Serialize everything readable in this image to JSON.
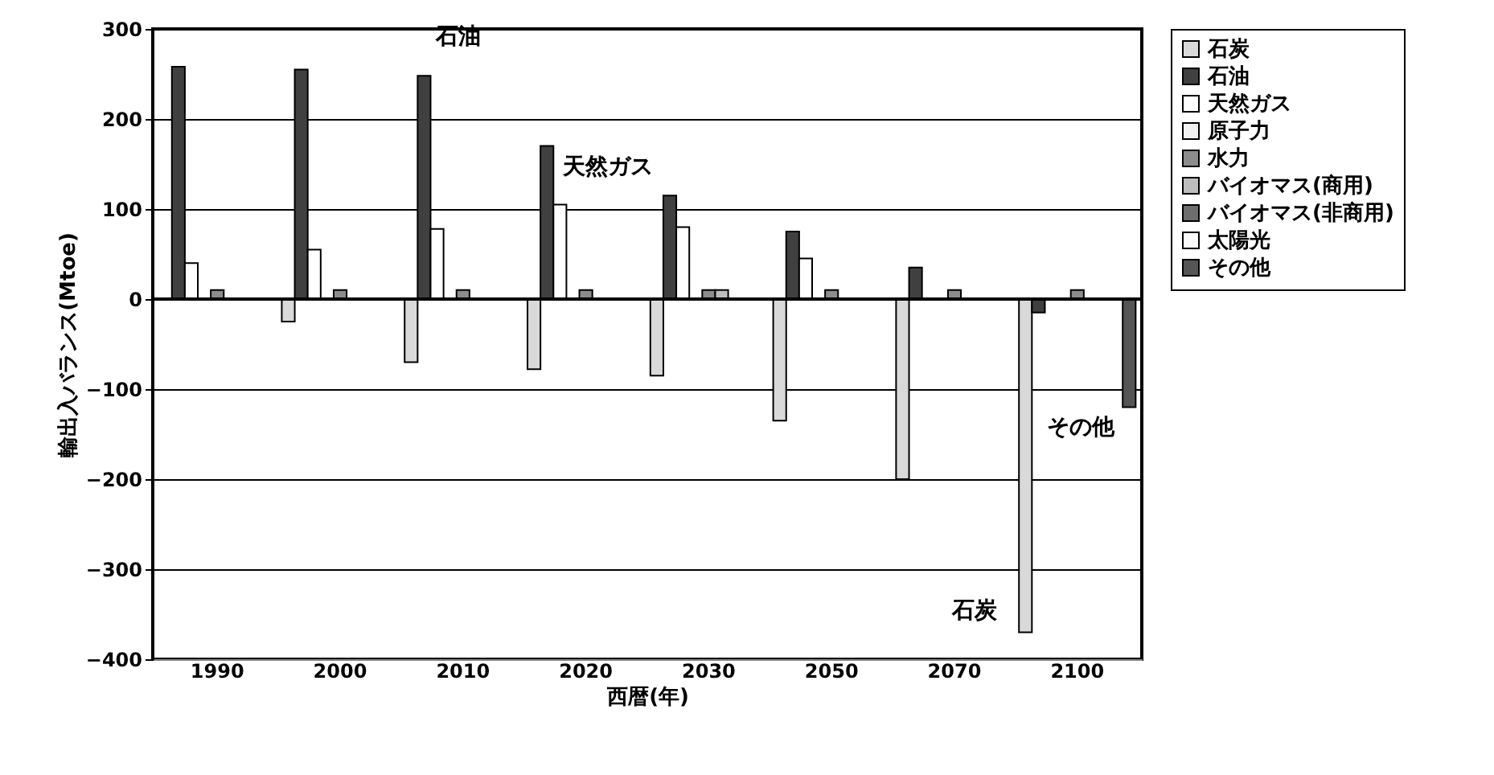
{
  "chart_data": {
    "type": "bar",
    "xlabel": "西暦(年)",
    "ylabel": "輸出入バランス(Mtoe)",
    "categories": [
      "1990",
      "2000",
      "2010",
      "2020",
      "2030",
      "2050",
      "2070",
      "2100"
    ],
    "series": [
      {
        "name": "石炭",
        "color": "#d9d9d9",
        "values": [
          null,
          -25,
          -70,
          -78,
          -85,
          -135,
          -200,
          -370
        ]
      },
      {
        "name": "石油",
        "color": "#404040",
        "values": [
          258,
          255,
          248,
          170,
          115,
          75,
          35,
          -15
        ]
      },
      {
        "name": "天然ガス",
        "color": "#ffffff",
        "values": [
          40,
          55,
          78,
          105,
          80,
          45,
          null,
          null
        ]
      },
      {
        "name": "原子力",
        "color": "#f2f2f2",
        "values": [
          null,
          null,
          null,
          null,
          null,
          null,
          null,
          null
        ]
      },
      {
        "name": "水力",
        "color": "#8c8c8c",
        "values": [
          10,
          10,
          10,
          10,
          10,
          10,
          10,
          10
        ]
      },
      {
        "name": "バイオマス(商用)",
        "color": "#bdbdbd",
        "values": [
          null,
          null,
          null,
          null,
          10,
          null,
          null,
          null
        ]
      },
      {
        "name": "バイオマス(非商用)",
        "color": "#6e6e6e",
        "values": [
          null,
          null,
          null,
          null,
          null,
          null,
          null,
          null
        ]
      },
      {
        "name": "太陽光",
        "color": "#fafafa",
        "values": [
          null,
          null,
          null,
          null,
          null,
          null,
          null,
          null
        ]
      },
      {
        "name": "その他",
        "color": "#555555",
        "values": [
          null,
          null,
          null,
          null,
          null,
          null,
          null,
          -120
        ]
      }
    ],
    "ylim": [
      -400,
      300
    ],
    "yticks": [
      -400,
      -300,
      -200,
      -100,
      0,
      100,
      200,
      300
    ],
    "grid": "y",
    "legend": "right",
    "annotations": [
      "石油",
      "天然ガス",
      "石炭",
      "その他"
    ]
  }
}
